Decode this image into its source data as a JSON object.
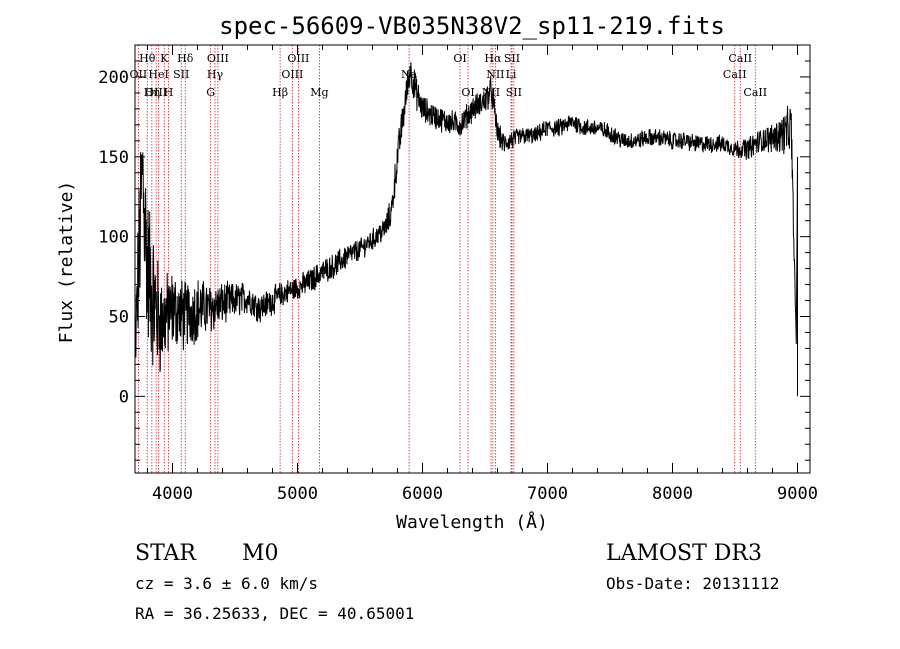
{
  "chart_data": {
    "type": "line",
    "title": "spec-56609-VB035N38V2_sp11-219.fits",
    "xlabel": "Wavelength (Å)",
    "ylabel": "Flux (relative)",
    "xlim": [
      3700,
      9100
    ],
    "ylim": [
      -48,
      220
    ],
    "xticks": [
      4000,
      5000,
      6000,
      7000,
      8000,
      9000
    ],
    "yticks": [
      0,
      50,
      100,
      150,
      200
    ],
    "grid": false,
    "spectrum": {
      "wavelength": [
        3700,
        3760,
        3800,
        3850,
        3900,
        3950,
        4000,
        4100,
        4200,
        4300,
        4400,
        4500,
        4600,
        4700,
        4800,
        4900,
        5000,
        5100,
        5200,
        5300,
        5400,
        5500,
        5600,
        5700,
        5750,
        5800,
        5850,
        5900,
        5950,
        6000,
        6100,
        6200,
        6300,
        6400,
        6500,
        6550,
        6600,
        6650,
        6700,
        6800,
        6900,
        7000,
        7100,
        7200,
        7300,
        7400,
        7500,
        7600,
        7700,
        7800,
        7900,
        8000,
        8100,
        8200,
        8300,
        8400,
        8500,
        8600,
        8700,
        8800,
        8900,
        8950,
        9000
      ],
      "flux": [
        25,
        140,
        80,
        60,
        45,
        50,
        55,
        50,
        55,
        55,
        58,
        60,
        62,
        55,
        60,
        65,
        68,
        72,
        78,
        82,
        88,
        92,
        98,
        105,
        115,
        150,
        178,
        205,
        190,
        180,
        175,
        172,
        170,
        180,
        185,
        192,
        165,
        158,
        160,
        163,
        163,
        168,
        168,
        172,
        168,
        168,
        165,
        160,
        160,
        162,
        162,
        160,
        160,
        158,
        158,
        158,
        155,
        155,
        160,
        162,
        165,
        168,
        0
      ],
      "noise": [
        30,
        50,
        45,
        40,
        30,
        25,
        22,
        20,
        18,
        14,
        12,
        10,
        9,
        8,
        8,
        7,
        7,
        7,
        7,
        7,
        7,
        6,
        6,
        7,
        9,
        10,
        10,
        10,
        9,
        8,
        7,
        7,
        7,
        7,
        8,
        8,
        7,
        6,
        6,
        5,
        5,
        5,
        5,
        5,
        5,
        5,
        5,
        5,
        5,
        5,
        5,
        5,
        5,
        5,
        5,
        5,
        5,
        6,
        7,
        8,
        12,
        14,
        0
      ]
    },
    "lines": [
      {
        "label": "Hθ",
        "wavelength": 3798,
        "row": 0
      },
      {
        "label": "K",
        "wavelength": 3934,
        "row": 0
      },
      {
        "label": "Hδ",
        "wavelength": 4102,
        "row": 0
      },
      {
        "label": "OIII",
        "wavelength": 4363,
        "row": 0
      },
      {
        "label": "OIII",
        "wavelength": 5007,
        "row": 0
      },
      {
        "label": "OI",
        "wavelength": 6300,
        "row": 0
      },
      {
        "label": "Hα",
        "wavelength": 6563,
        "row": 0
      },
      {
        "label": "SII",
        "wavelength": 6716,
        "row": 0
      },
      {
        "label": "CaII",
        "wavelength": 8542,
        "row": 0
      },
      {
        "label": "OII",
        "wavelength": 3727,
        "row": 1
      },
      {
        "label": "HeI",
        "wavelength": 3889,
        "row": 1
      },
      {
        "label": "SII",
        "wavelength": 4070,
        "row": 1
      },
      {
        "label": "Hγ",
        "wavelength": 4340,
        "row": 1
      },
      {
        "label": "OIII",
        "wavelength": 4959,
        "row": 1
      },
      {
        "label": "Na",
        "wavelength": 5893,
        "row": 1
      },
      {
        "label": "NII",
        "wavelength": 6583,
        "row": 1
      },
      {
        "label": "Li",
        "wavelength": 6708,
        "row": 1
      },
      {
        "label": "CaII",
        "wavelength": 8498,
        "row": 1
      },
      {
        "label": "OIII",
        "wavelength": 3869,
        "row": 2
      },
      {
        "label": "Hη",
        "wavelength": 3835,
        "row": 2
      },
      {
        "label": "H",
        "wavelength": 3968,
        "row": 2
      },
      {
        "label": "G",
        "wavelength": 4305,
        "row": 2
      },
      {
        "label": "Hβ",
        "wavelength": 4861,
        "row": 2
      },
      {
        "label": "Mg",
        "wavelength": 5175,
        "row": 2
      },
      {
        "label": "OI",
        "wavelength": 6364,
        "row": 2
      },
      {
        "label": "NII",
        "wavelength": 6548,
        "row": 2
      },
      {
        "label": "SII",
        "wavelength": 6731,
        "row": 2
      },
      {
        "label": "CaII",
        "wavelength": 8662,
        "row": 2
      }
    ]
  },
  "info": {
    "class": "STAR",
    "subclass": "M0",
    "cz": "cz = 3.6 ± 6.0 km/s",
    "coords": "RA =  36.25633, DEC =  40.65001",
    "survey": "LAMOST DR3",
    "obsdate": "Obs-Date: 20131112"
  },
  "colors": {
    "line_marker": "#cc2222",
    "spectrum": "#000000"
  }
}
